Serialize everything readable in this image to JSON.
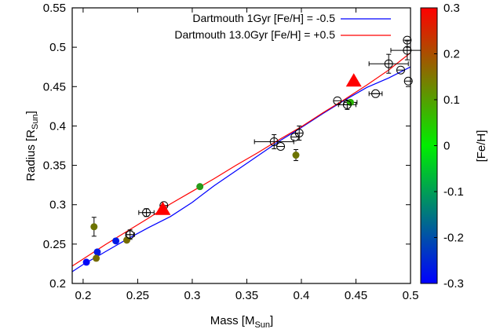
{
  "chart_data": {
    "type": "scatter",
    "xlabel": "Mass [M",
    "xlabel_sub": "Sun",
    "xlabel_end": "]",
    "ylabel": "Radius [R",
    "ylabel_sub": "Sun",
    "ylabel_end": "]",
    "colorbar_label": "[Fe/H]",
    "xlim": [
      0.19,
      0.5
    ],
    "ylim": [
      0.2,
      0.55
    ],
    "clim": [
      -0.3,
      0.3
    ],
    "x_ticks": [
      "0.2",
      "0.25",
      "0.3",
      "0.35",
      "0.4",
      "0.45",
      "0.5"
    ],
    "x_tick_values": [
      0.2,
      0.25,
      0.3,
      0.35,
      0.4,
      0.45,
      0.5
    ],
    "y_ticks": [
      "0.2",
      "0.25",
      "0.3",
      "0.35",
      "0.4",
      "0.45",
      "0.5",
      "0.55"
    ],
    "y_tick_values": [
      0.2,
      0.25,
      0.3,
      0.35,
      0.4,
      0.45,
      0.5,
      0.55
    ],
    "colorbar_ticks": [
      "0.3",
      "0.2",
      "0.1",
      "0",
      "-0.1",
      "-0.2",
      "-0.3"
    ],
    "colorbar_tick_values": [
      0.3,
      0.2,
      0.1,
      0,
      -0.1,
      -0.2,
      -0.3
    ],
    "grid": false,
    "legend_position": "top-right",
    "series": [
      {
        "name": "Dartmouth 1Gyr [Fe/H] = -0.5",
        "type": "line",
        "color": "#0000ff",
        "x": [
          0.19,
          0.2,
          0.22,
          0.24,
          0.26,
          0.28,
          0.3,
          0.32,
          0.34,
          0.36,
          0.38,
          0.4,
          0.42,
          0.44,
          0.46,
          0.48,
          0.5
        ],
        "y": [
          0.215,
          0.224,
          0.24,
          0.256,
          0.271,
          0.285,
          0.303,
          0.324,
          0.343,
          0.362,
          0.381,
          0.398,
          0.416,
          0.433,
          0.449,
          0.461,
          0.475
        ]
      },
      {
        "name": "Dartmouth 13.0Gyr [Fe/H] = +0.5",
        "type": "line",
        "color": "#ff0000",
        "x": [
          0.19,
          0.2,
          0.22,
          0.24,
          0.26,
          0.28,
          0.3,
          0.32,
          0.34,
          0.36,
          0.38,
          0.4,
          0.42,
          0.44,
          0.46,
          0.48,
          0.5
        ],
        "y": [
          0.222,
          0.231,
          0.249,
          0.266,
          0.283,
          0.301,
          0.317,
          0.333,
          0.35,
          0.366,
          0.383,
          0.399,
          0.417,
          0.434,
          0.452,
          0.471,
          0.493
        ]
      }
    ],
    "points_feh": [
      {
        "x": 0.203,
        "y": 0.227,
        "feh": -0.29
      },
      {
        "x": 0.213,
        "y": 0.24,
        "feh": -0.27
      },
      {
        "x": 0.23,
        "y": 0.254,
        "feh": -0.27
      },
      {
        "x": 0.21,
        "y": 0.272,
        "feh": 0.08,
        "yerr": 0.012
      },
      {
        "x": 0.212,
        "y": 0.232,
        "feh": 0.09
      },
      {
        "x": 0.24,
        "y": 0.255,
        "feh": 0.09
      },
      {
        "x": 0.307,
        "y": 0.323,
        "feh": -0.03
      },
      {
        "x": 0.395,
        "y": 0.363,
        "feh": 0.08,
        "yerr": 0.007
      },
      {
        "x": 0.445,
        "y": 0.43,
        "feh": 0.0,
        "xerr": 0.006
      }
    ],
    "points_open": [
      {
        "x": 0.243,
        "y": 0.262,
        "xerr": 0.004,
        "yerr": 0.006
      },
      {
        "x": 0.258,
        "y": 0.29,
        "xerr": 0.007,
        "yerr": 0.005
      },
      {
        "x": 0.274,
        "y": 0.299
      },
      {
        "x": 0.375,
        "y": 0.38,
        "xerr": 0.018,
        "yerr": 0.009
      },
      {
        "x": 0.381,
        "y": 0.374
      },
      {
        "x": 0.394,
        "y": 0.386
      },
      {
        "x": 0.398,
        "y": 0.391,
        "yerr": 0.009
      },
      {
        "x": 0.433,
        "y": 0.432
      },
      {
        "x": 0.442,
        "y": 0.427,
        "xerr": 0.008,
        "yerr": 0.006
      },
      {
        "x": 0.468,
        "y": 0.441,
        "xerr": 0.006
      },
      {
        "x": 0.48,
        "y": 0.479,
        "xerr": 0.018,
        "yerr": 0.012
      },
      {
        "x": 0.491,
        "y": 0.471
      },
      {
        "x": 0.497,
        "y": 0.509
      },
      {
        "x": 0.497,
        "y": 0.496,
        "xerr": 0.015,
        "yerr": 0.012
      },
      {
        "x": 0.498,
        "y": 0.457
      }
    ],
    "triangles": [
      {
        "x": 0.273,
        "y": 0.294,
        "color": "#ff0000"
      },
      {
        "x": 0.448,
        "y": 0.457,
        "color": "#ff0000"
      }
    ]
  }
}
